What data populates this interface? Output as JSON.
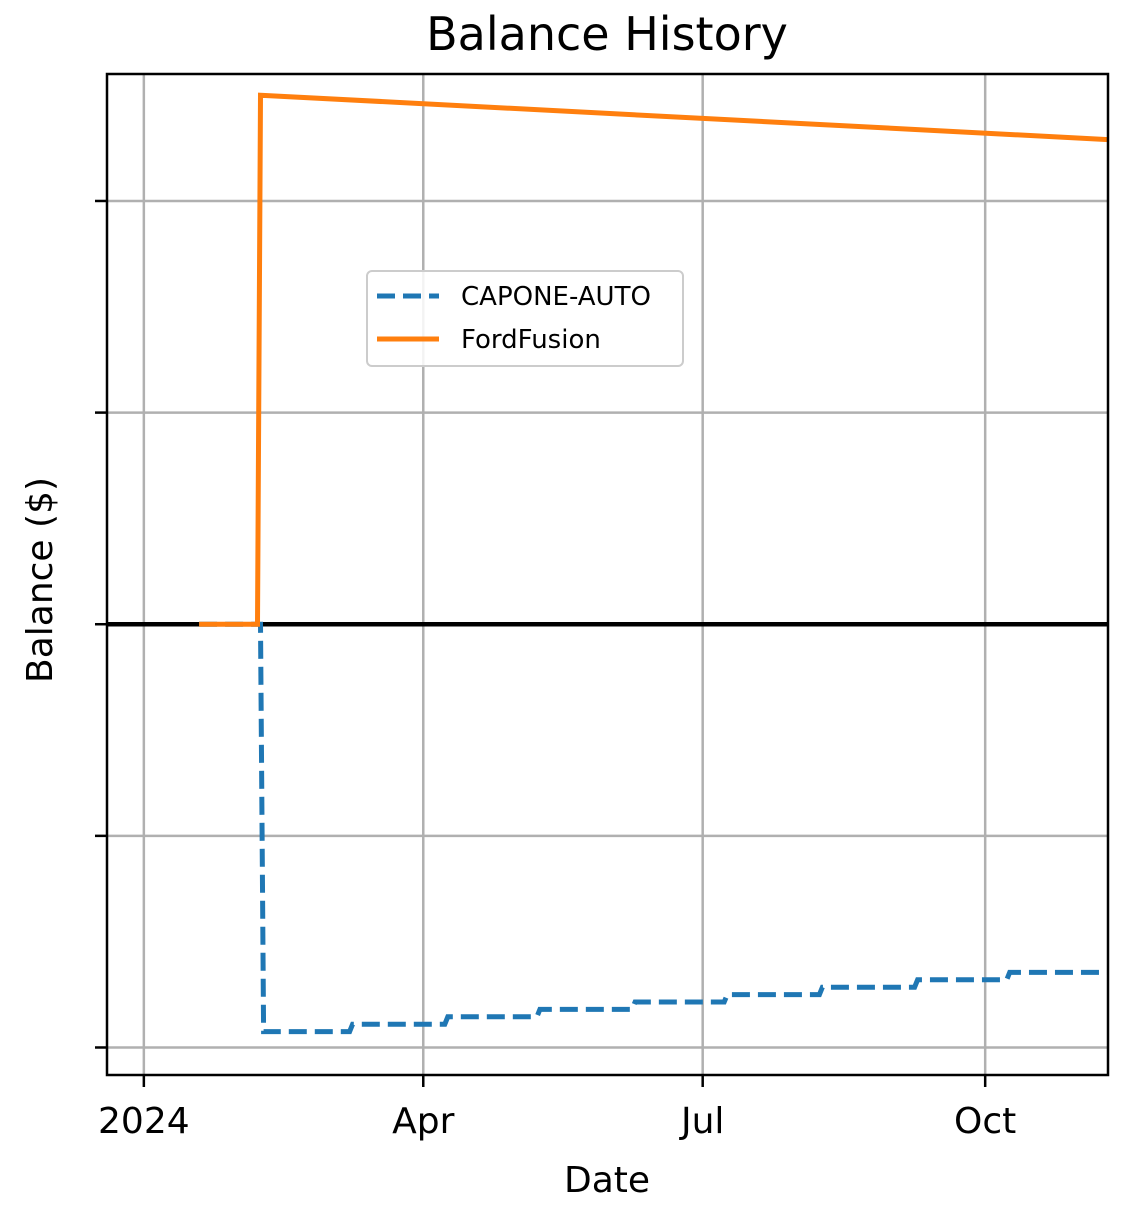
{
  "chart_data": {
    "type": "line",
    "title": "Balance History",
    "xlabel": "Date",
    "ylabel": "Balance ($)",
    "x_tick_labels": [
      {
        "date": "2024-01-01",
        "label": "2024"
      },
      {
        "date": "2024-04-01",
        "label": "Apr"
      },
      {
        "date": "2024-07-01",
        "label": "Jul"
      },
      {
        "date": "2024-10-01",
        "label": "Oct"
      }
    ],
    "y_ticks": [
      -20000,
      -10000,
      0,
      10000,
      20000
    ],
    "y_tick_labels_visible": false,
    "xlim": [
      "2023-12-20",
      "2024-11-10"
    ],
    "ylim": [
      -21300,
      26000
    ],
    "grid": true,
    "zero_line": true,
    "legend": {
      "placement": "upper-center"
    },
    "series": [
      {
        "name": "CAPONE-AUTO",
        "color": "#1f77b4",
        "style": "dashed",
        "step": true,
        "points": [
          [
            "2024-01-19",
            0
          ],
          [
            "2024-02-08",
            0
          ],
          [
            "2024-02-09",
            -19250
          ],
          [
            "2024-03-08",
            -19250
          ],
          [
            "2024-03-09",
            -18900
          ],
          [
            "2024-04-08",
            -18900
          ],
          [
            "2024-04-09",
            -18550
          ],
          [
            "2024-05-08",
            -18550
          ],
          [
            "2024-05-09",
            -18200
          ],
          [
            "2024-06-08",
            -18200
          ],
          [
            "2024-06-09",
            -17850
          ],
          [
            "2024-07-08",
            -17850
          ],
          [
            "2024-07-09",
            -17500
          ],
          [
            "2024-08-08",
            -17500
          ],
          [
            "2024-08-09",
            -17150
          ],
          [
            "2024-09-08",
            -17150
          ],
          [
            "2024-09-09",
            -16800
          ],
          [
            "2024-10-08",
            -16800
          ],
          [
            "2024-10-09",
            -16450
          ],
          [
            "2024-11-10",
            -16450
          ]
        ]
      },
      {
        "name": "FordFusion",
        "color": "#ff7f0e",
        "style": "solid",
        "step": false,
        "points": [
          [
            "2024-01-19",
            0
          ],
          [
            "2024-02-07",
            0
          ],
          [
            "2024-02-08",
            25000
          ],
          [
            "2024-11-10",
            22900
          ]
        ]
      }
    ]
  }
}
